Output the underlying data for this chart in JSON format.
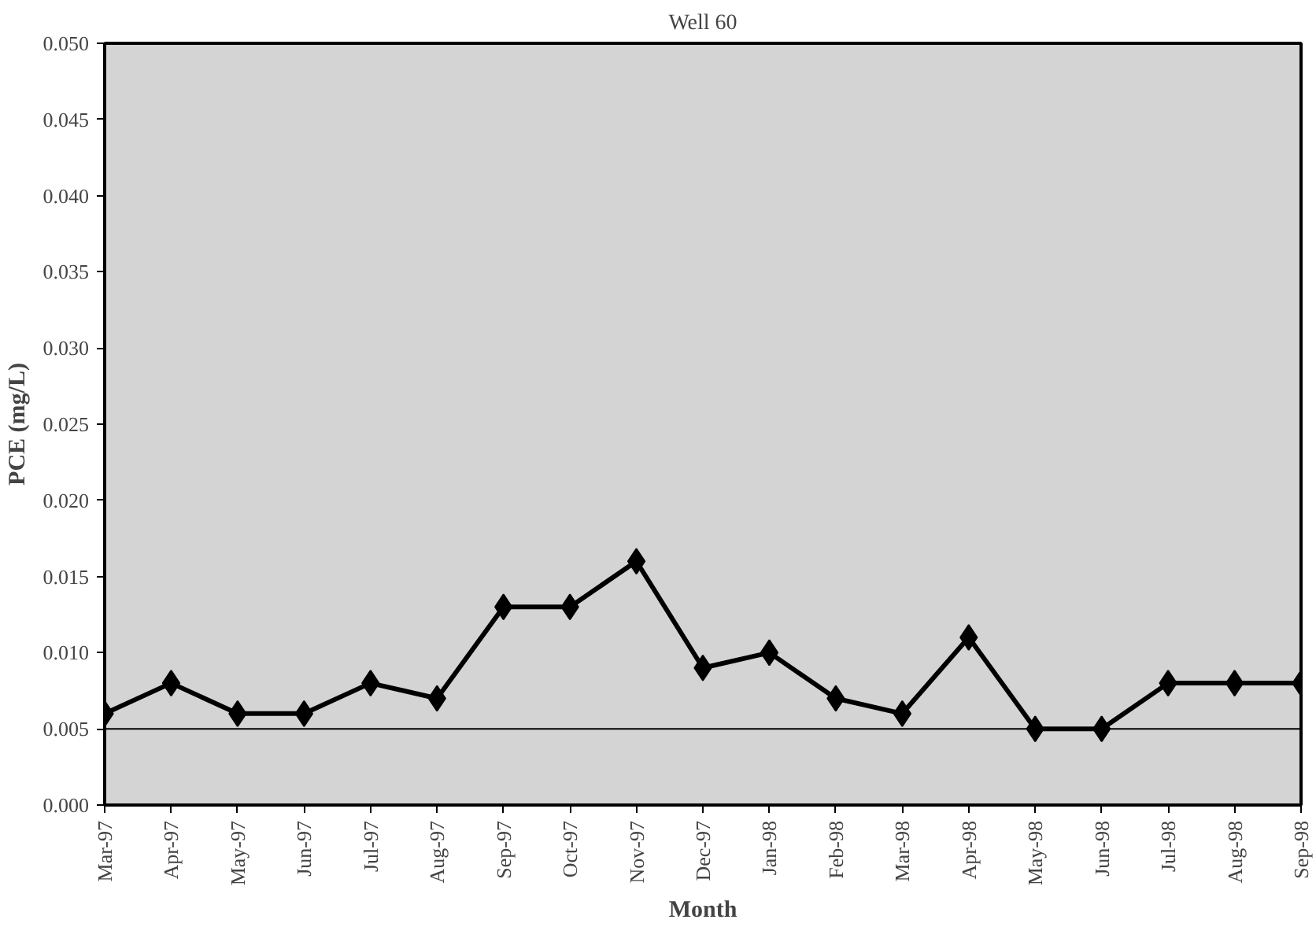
{
  "chart_data": {
    "type": "line",
    "title": "Well 60",
    "xlabel": "Month",
    "ylabel": "PCE (mg/L)",
    "categories": [
      "Mar-97",
      "Apr-97",
      "May-97",
      "Jun-97",
      "Jul-97",
      "Aug-97",
      "Sep-97",
      "Oct-97",
      "Nov-97",
      "Dec-97",
      "Jan-98",
      "Feb-98",
      "Mar-98",
      "Apr-98",
      "May-98",
      "Jun-98",
      "Jul-98",
      "Aug-98",
      "Sep-98"
    ],
    "series": [
      {
        "color": "#000000",
        "values": [
          0.006,
          0.008,
          0.006,
          0.006,
          0.008,
          0.007,
          0.013,
          0.013,
          0.016,
          0.009,
          0.01,
          0.007,
          0.006,
          0.011,
          0.005,
          0.005,
          0.008,
          0.008,
          0.008
        ]
      }
    ],
    "ylim": [
      0,
      0.05
    ],
    "yticks": [
      {
        "value": 0,
        "label": "0.000"
      },
      {
        "value": 0.005,
        "label": "0.005"
      },
      {
        "value": 0.01,
        "label": "0.010"
      },
      {
        "value": 0.015,
        "label": "0.015"
      },
      {
        "value": 0.02,
        "label": "0.020"
      },
      {
        "value": 0.025,
        "label": "0.025"
      },
      {
        "value": 0.03,
        "label": "0.030"
      },
      {
        "value": 0.035,
        "label": "0.035"
      },
      {
        "value": 0.04,
        "label": "0.040"
      },
      {
        "value": 0.045,
        "label": "0.045"
      },
      {
        "value": 0.05,
        "label": "0.050"
      }
    ],
    "ref_lines": [
      {
        "axis": "y",
        "value": 0.005,
        "color": "#000000",
        "line_style": "solid"
      }
    ],
    "marker": "diamond",
    "line_style": "solid",
    "grid": false
  }
}
